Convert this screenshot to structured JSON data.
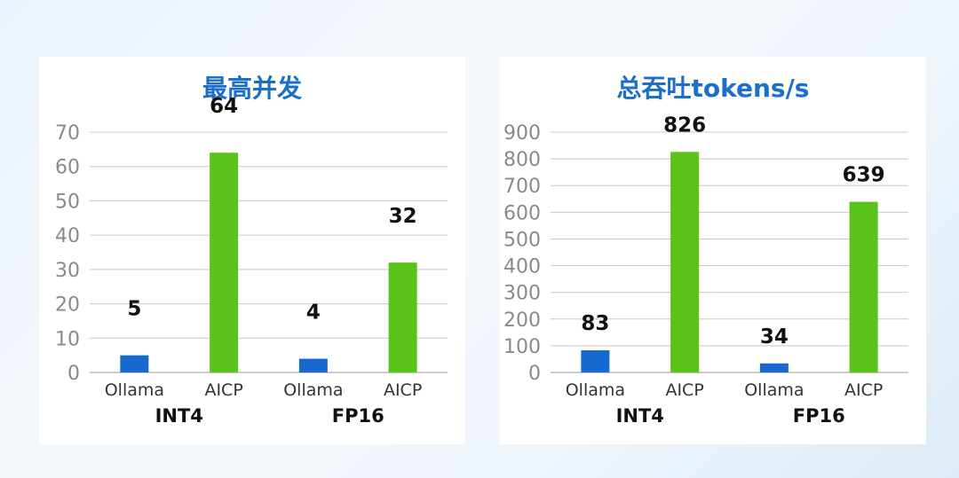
{
  "colors": {
    "ollama": "#1769d0",
    "aicp": "#5ac31a",
    "title": "#1a6fc9"
  },
  "chart_data": [
    {
      "type": "bar",
      "title": "最高并发",
      "groups": [
        "INT4",
        "FP16"
      ],
      "categories": [
        "Ollama",
        "AICP",
        "Ollama",
        "AICP"
      ],
      "values": [
        5,
        64,
        4,
        32
      ],
      "ylim": [
        0,
        70
      ],
      "yticks": [
        0,
        10,
        20,
        30,
        40,
        50,
        60,
        70
      ],
      "grid": true
    },
    {
      "type": "bar",
      "title": "总吞吐tokens/s",
      "groups": [
        "INT4",
        "FP16"
      ],
      "categories": [
        "Ollama",
        "AICP",
        "Ollama",
        "AICP"
      ],
      "values": [
        83,
        826,
        34,
        639
      ],
      "ylim": [
        0,
        900
      ],
      "yticks": [
        0,
        100,
        200,
        300,
        400,
        500,
        600,
        700,
        800,
        900
      ],
      "grid": true
    }
  ]
}
